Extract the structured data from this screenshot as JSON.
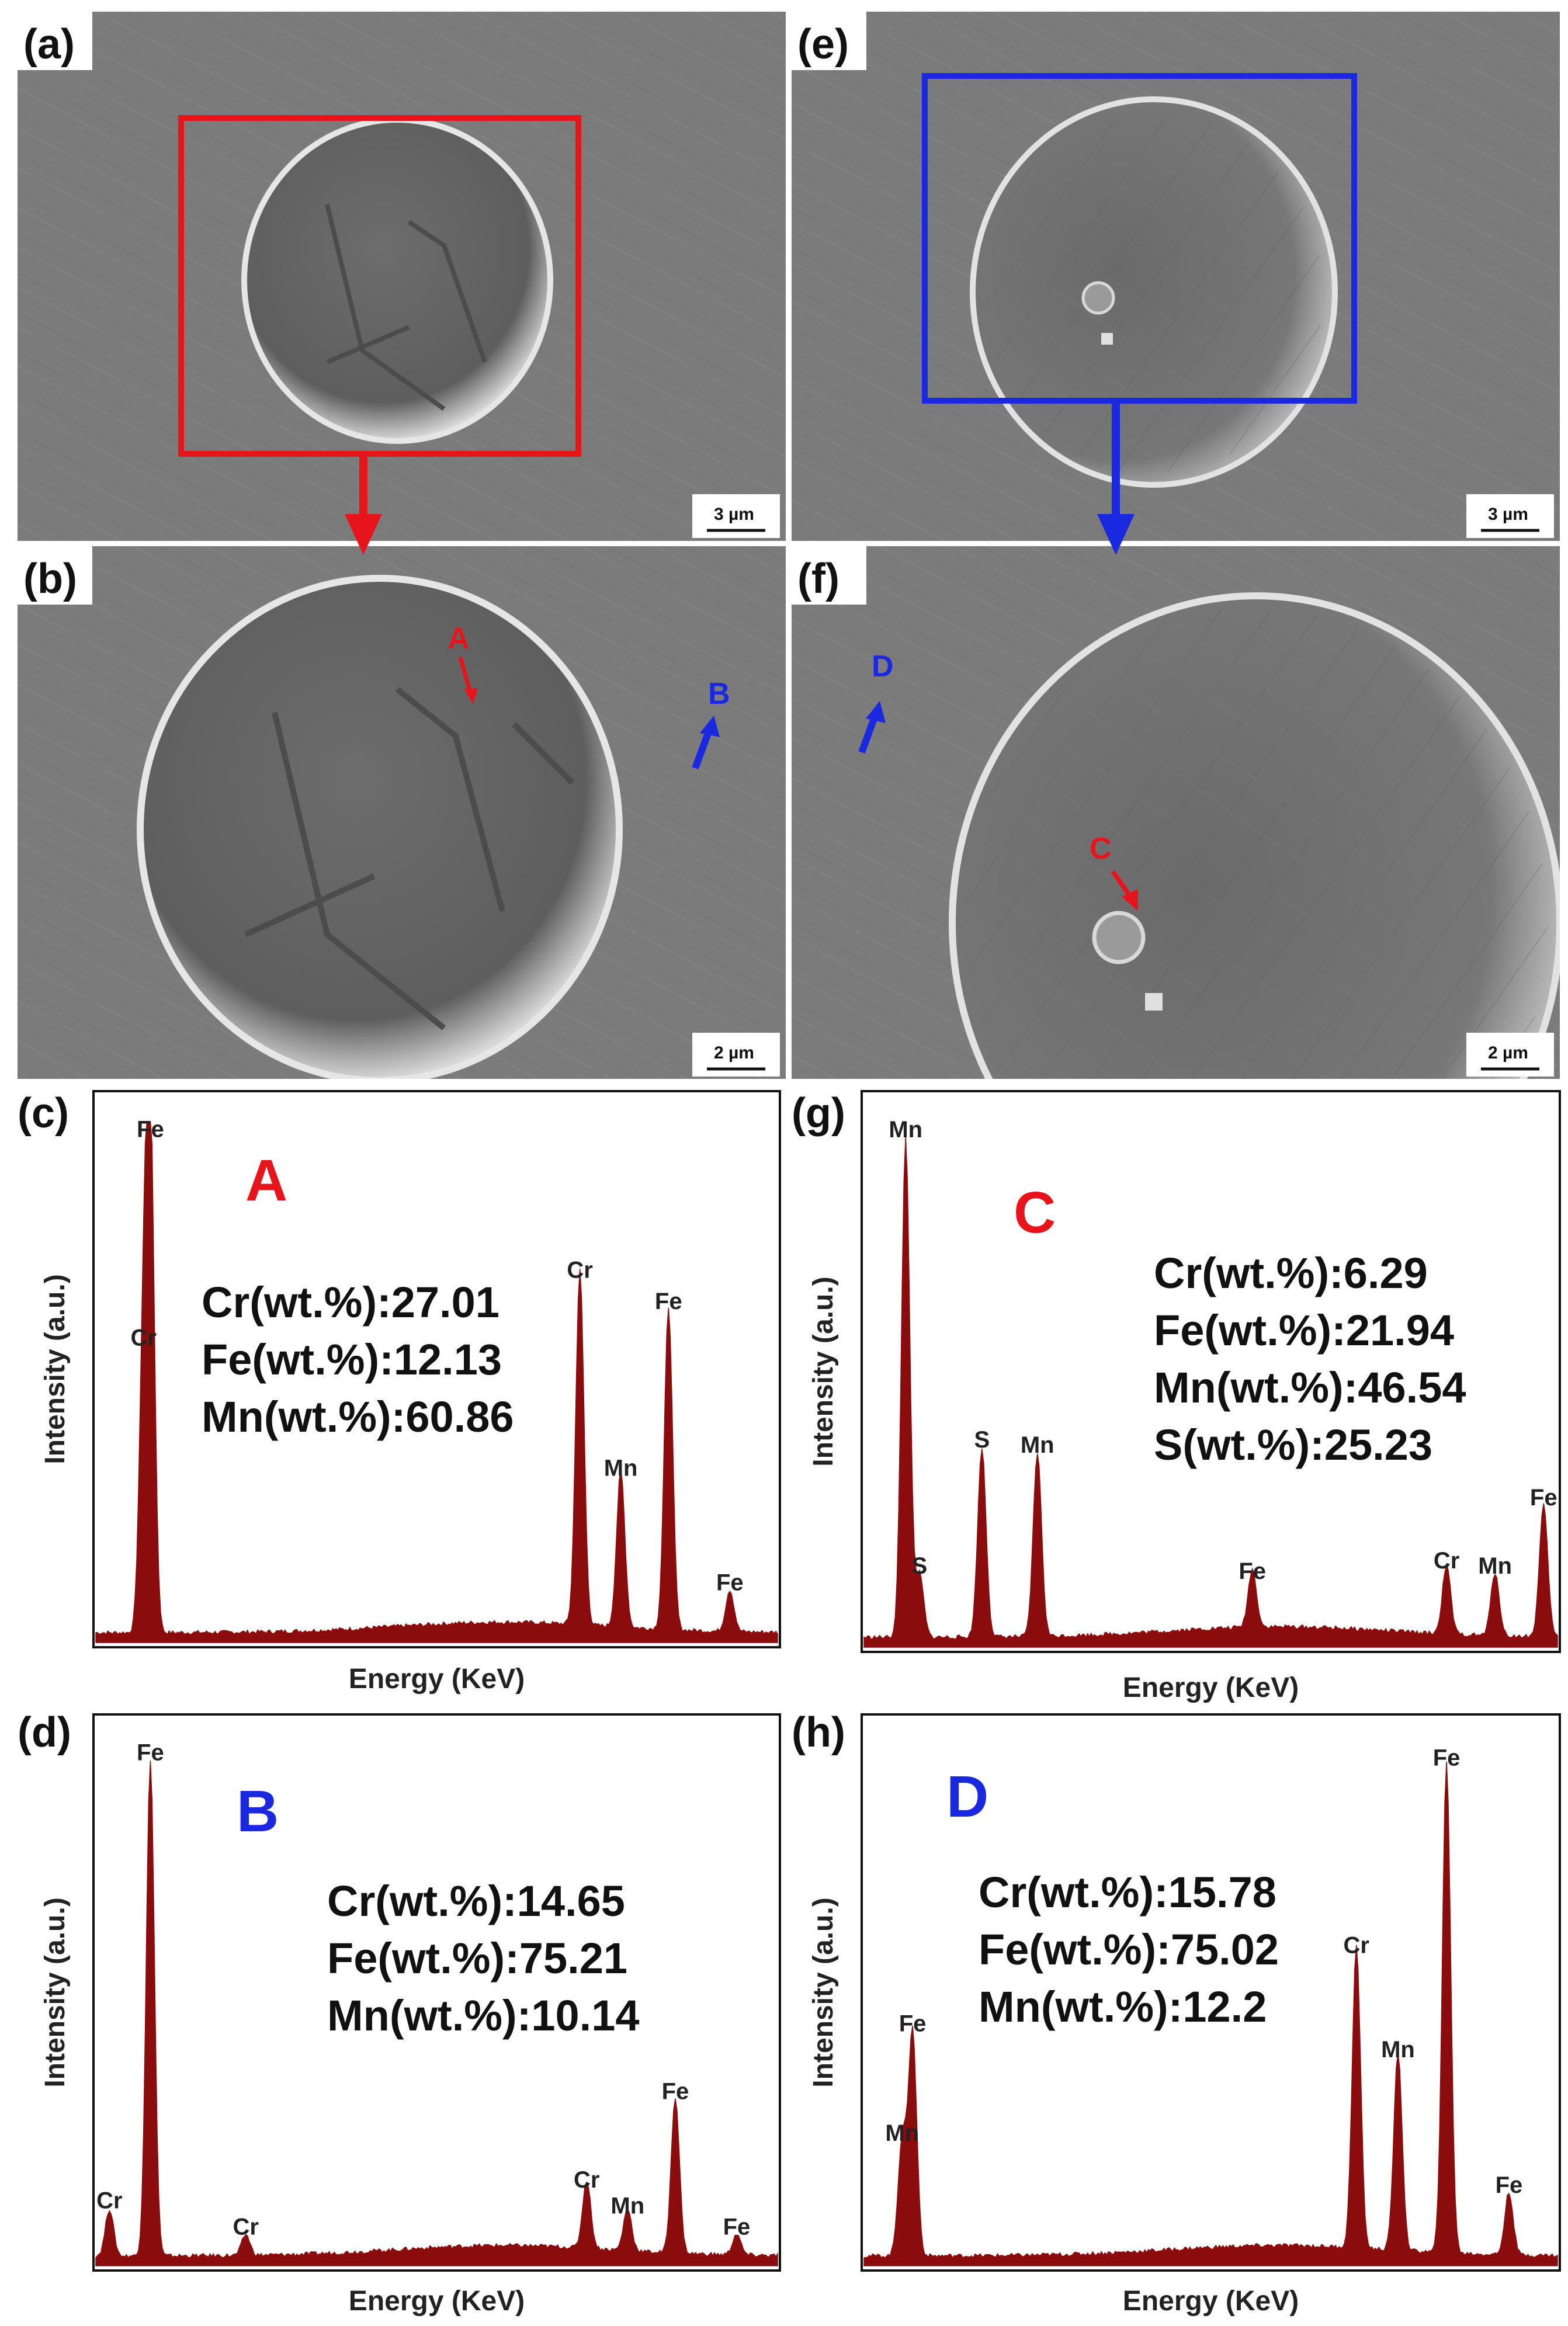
{
  "colors": {
    "red": "#e8141c",
    "blue": "#1a28e0",
    "spectrum": "#8b0c0c"
  },
  "sem_panels": [
    {
      "id": "a",
      "label": "(a)",
      "scale_bar": "3 µm"
    },
    {
      "id": "b",
      "label": "(b)",
      "scale_bar": "2 µm",
      "markers": [
        {
          "letter": "A",
          "color": "red"
        },
        {
          "letter": "B",
          "color": "blue"
        }
      ]
    },
    {
      "id": "e",
      "label": "(e)",
      "scale_bar": "3 µm"
    },
    {
      "id": "f",
      "label": "(f)",
      "scale_bar": "2 µm",
      "markers": [
        {
          "letter": "D",
          "color": "blue"
        },
        {
          "letter": "C",
          "color": "red"
        }
      ]
    }
  ],
  "chart_data": [
    {
      "id": "c",
      "type": "line",
      "label": "(c)",
      "point": "A",
      "point_color": "red",
      "xlabel": "Energy (KeV)",
      "ylabel": "Intensity (a.u.)",
      "composition": [
        "Cr(wt.%):27.01",
        "Fe(wt.%):12.13",
        "Mn(wt.%):60.86"
      ],
      "peaks": [
        {
          "label": "Fe",
          "pos": 0.08,
          "height": 0.95
        },
        {
          "label": "Cr",
          "pos": 0.07,
          "height": 0.55
        },
        {
          "label": "Cr",
          "pos": 0.71,
          "height": 0.68
        },
        {
          "label": "Mn",
          "pos": 0.77,
          "height": 0.3
        },
        {
          "label": "Fe",
          "pos": 0.84,
          "height": 0.62
        },
        {
          "label": "Fe",
          "pos": 0.93,
          "height": 0.08
        }
      ]
    },
    {
      "id": "d",
      "type": "line",
      "label": "(d)",
      "point": "B",
      "point_color": "blue",
      "xlabel": "Energy (KeV)",
      "ylabel": "Intensity (a.u.)",
      "composition": [
        "Cr(wt.%):14.65",
        "Fe(wt.%):75.21",
        "Mn(wt.%):10.14"
      ],
      "peaks": [
        {
          "label": "Fe",
          "pos": 0.08,
          "height": 0.95
        },
        {
          "label": "Cr",
          "pos": 0.02,
          "height": 0.09
        },
        {
          "label": "Cr",
          "pos": 0.22,
          "height": 0.04
        },
        {
          "label": "Cr",
          "pos": 0.72,
          "height": 0.13
        },
        {
          "label": "Mn",
          "pos": 0.78,
          "height": 0.08
        },
        {
          "label": "Fe",
          "pos": 0.85,
          "height": 0.3
        },
        {
          "label": "Fe",
          "pos": 0.94,
          "height": 0.04
        }
      ]
    },
    {
      "id": "g",
      "type": "line",
      "label": "(g)",
      "point": "C",
      "point_color": "red",
      "xlabel": "Energy (KeV)",
      "ylabel": "Intensity (a.u.)",
      "composition": [
        "Cr(wt.%):6.29",
        "Fe(wt.%):21.94",
        "Mn(wt.%):46.54",
        "S(wt.%):25.23"
      ],
      "peaks": [
        {
          "label": "Mn",
          "pos": 0.06,
          "height": 0.95
        },
        {
          "label": "S",
          "pos": 0.08,
          "height": 0.12
        },
        {
          "label": "S",
          "pos": 0.17,
          "height": 0.36
        },
        {
          "label": "Mn",
          "pos": 0.25,
          "height": 0.35
        },
        {
          "label": "Fe",
          "pos": 0.56,
          "height": 0.11
        },
        {
          "label": "Cr",
          "pos": 0.84,
          "height": 0.13
        },
        {
          "label": "Mn",
          "pos": 0.91,
          "height": 0.12
        },
        {
          "label": "Fe",
          "pos": 0.98,
          "height": 0.25
        }
      ]
    },
    {
      "id": "h",
      "type": "line",
      "label": "(h)",
      "point": "D",
      "point_color": "blue",
      "xlabel": "Energy (KeV)",
      "ylabel": "Intensity (a.u.)",
      "composition": [
        "Cr(wt.%):15.78",
        "Fe(wt.%):75.02",
        "Mn(wt.%):12.2"
      ],
      "peaks": [
        {
          "label": "Mn",
          "pos": 0.055,
          "height": 0.22
        },
        {
          "label": "Fe",
          "pos": 0.07,
          "height": 0.43
        },
        {
          "label": "Cr",
          "pos": 0.71,
          "height": 0.58
        },
        {
          "label": "Mn",
          "pos": 0.77,
          "height": 0.38
        },
        {
          "label": "Fe",
          "pos": 0.84,
          "height": 0.94
        },
        {
          "label": "Fe",
          "pos": 0.93,
          "height": 0.12
        }
      ]
    }
  ]
}
